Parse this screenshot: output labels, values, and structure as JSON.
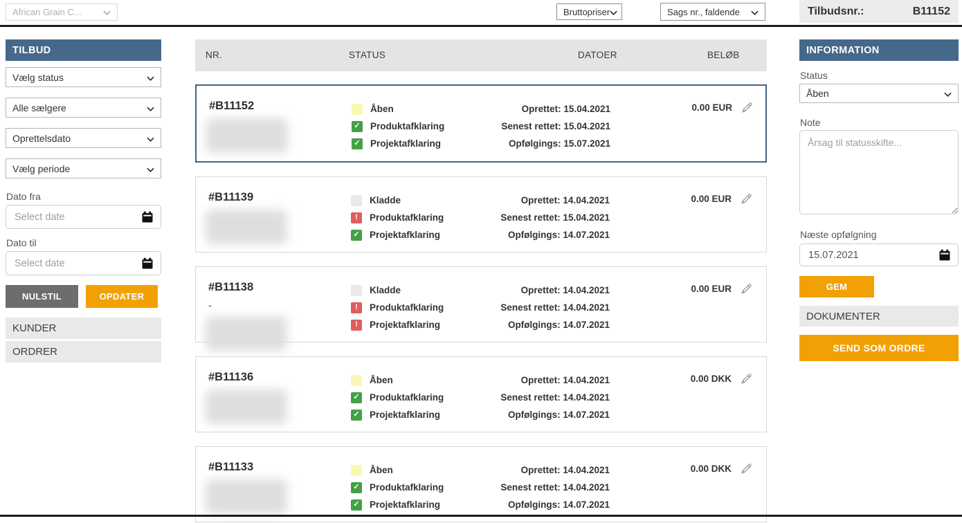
{
  "topbar": {
    "company_select": "African Grain C...",
    "price_select": "Bruttopriser",
    "sort_select": "Sags nr., faldende",
    "tilbudsnr_label": "Tilbudsnr.:",
    "tilbudsnr_value": "B11152"
  },
  "sidebar": {
    "title": "TILBUD",
    "status_select": "Vælg status",
    "seller_select": "Alle sælgere",
    "datetype_select": "Oprettelsdato",
    "period_select": "Vælg periode",
    "date_from_label": "Dato fra",
    "date_to_label": "Dato til",
    "date_placeholder": "Select date",
    "reset_button": "NULSTIL",
    "update_button": "OPDATER",
    "sections": [
      {
        "label": "KUNDER"
      },
      {
        "label": "ORDRER"
      }
    ]
  },
  "list": {
    "columns": [
      "NR.",
      "STATUS",
      "DATOER",
      "BELØB"
    ],
    "rows": [
      {
        "number": "#B11152",
        "subtext": "",
        "selected": true,
        "statuses": [
          {
            "label": "Åben",
            "state": "yellow"
          },
          {
            "label": "Produktafklaring",
            "state": "ok"
          },
          {
            "label": "Projektafklaring",
            "state": "ok"
          }
        ],
        "dates": [
          "Oprettet: 15.04.2021",
          "Senest rettet: 15.04.2021",
          "Opfølgings: 15.07.2021"
        ],
        "amount": "0.00 EUR"
      },
      {
        "number": "#B11139",
        "subtext": "",
        "selected": false,
        "statuses": [
          {
            "label": "Kladde",
            "state": "gray"
          },
          {
            "label": "Produktafklaring",
            "state": "error"
          },
          {
            "label": "Projektafklaring",
            "state": "ok"
          }
        ],
        "dates": [
          "Oprettet: 14.04.2021",
          "Senest rettet: 15.04.2021",
          "Opfølgings: 14.07.2021"
        ],
        "amount": "0.00 EUR"
      },
      {
        "number": "#B11138",
        "subtext": "-",
        "selected": false,
        "statuses": [
          {
            "label": "Kladde",
            "state": "gray"
          },
          {
            "label": "Produktafklaring",
            "state": "error"
          },
          {
            "label": "Projektafklaring",
            "state": "error"
          }
        ],
        "dates": [
          "Oprettet: 14.04.2021",
          "Senest rettet: 14.04.2021",
          "Opfølgings: 14.07.2021"
        ],
        "amount": "0.00 EUR"
      },
      {
        "number": "#B11136",
        "subtext": "",
        "selected": false,
        "statuses": [
          {
            "label": "Åben",
            "state": "yellow"
          },
          {
            "label": "Produktafklaring",
            "state": "ok"
          },
          {
            "label": "Projektafklaring",
            "state": "ok"
          }
        ],
        "dates": [
          "Oprettet: 14.04.2021",
          "Senest rettet: 14.04.2021",
          "Opfølgings: 14.07.2021"
        ],
        "amount": "0.00 DKK"
      },
      {
        "number": "#B11133",
        "subtext": "",
        "selected": false,
        "statuses": [
          {
            "label": "Åben",
            "state": "yellow"
          },
          {
            "label": "Produktafklaring",
            "state": "ok"
          },
          {
            "label": "Projektafklaring",
            "state": "ok"
          }
        ],
        "dates": [
          "Oprettet: 14.04.2021",
          "Senest rettet: 14.04.2021",
          "Opfølgings: 14.07.2021"
        ],
        "amount": "0.00 DKK"
      }
    ]
  },
  "infopanel": {
    "title": "INFORMATION",
    "status_label": "Status",
    "status_value": "Åben",
    "note_label": "Note",
    "note_placeholder": "Årsag til statusskifte...",
    "followup_label": "Næste opfølgning",
    "followup_value": "15.07.2021",
    "save_button": "GEM",
    "documents_label": "DOKUMENTER",
    "send_button": "SEND SOM ORDRE"
  },
  "colors": {
    "header_blue": "#46688a",
    "accent_orange": "#f2a104",
    "reset_gray": "#6d6d6d",
    "status_green": "#43a047",
    "status_red": "#e05d5d",
    "status_yellow": "#f8f8b2",
    "status_gray": "#e9e9e9",
    "selected_border": "#3f6384"
  }
}
